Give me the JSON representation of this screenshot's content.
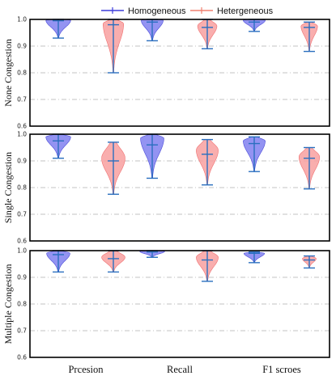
{
  "chart_data": {
    "type": "violin",
    "legend": {
      "placement": "top-center",
      "entries": [
        {
          "label": "Homogeneous",
          "color": "#3b3bdc"
        },
        {
          "label": "Hetergeneous",
          "color": "#f08070"
        }
      ]
    },
    "categories": [
      "Prcesion",
      "Recall",
      "F1 scroes"
    ],
    "ylim": [
      0.6,
      1.0
    ],
    "yticks": [
      "0.6",
      "0.7",
      "0.8",
      "0.9",
      "1.0"
    ],
    "grid": "horizontal dashed",
    "colors": {
      "homo_fill": "#8080f0",
      "homo_edge": "#4a4ad8",
      "hetero_fill": "#f8a0a0",
      "hetero_edge": "#f07070",
      "whisker": "#2a6fbf"
    },
    "panels": [
      {
        "ylabel": "None Congestion",
        "series": [
          {
            "name": "Homogeneous",
            "min": [
              0.93,
              0.92,
              0.955
            ],
            "mean": [
              0.995,
              0.99,
              0.99
            ],
            "max": [
              1.0,
              1.0,
              1.0
            ],
            "peak": [
              0.997,
              0.997,
              0.997
            ],
            "width": [
              0.9,
              0.8,
              0.8
            ]
          },
          {
            "name": "Hetergeneous",
            "min": [
              0.8,
              0.89,
              0.88
            ],
            "mean": [
              0.98,
              0.97,
              0.97
            ],
            "max": [
              1.0,
              1.0,
              0.99
            ],
            "peak": [
              0.985,
              0.975,
              0.975
            ],
            "width": [
              0.75,
              0.7,
              0.6
            ]
          }
        ]
      },
      {
        "ylabel": "Single Congestion",
        "series": [
          {
            "name": "Homogeneous",
            "min": [
              0.91,
              0.835,
              0.86
            ],
            "mean": [
              0.975,
              0.96,
              0.965
            ],
            "max": [
              1.0,
              1.0,
              0.99
            ],
            "peak": [
              0.99,
              0.985,
              0.975
            ],
            "width": [
              0.9,
              0.85,
              0.8
            ]
          },
          {
            "name": "Hetergeneous",
            "min": [
              0.775,
              0.81,
              0.795
            ],
            "mean": [
              0.9,
              0.925,
              0.91
            ],
            "max": [
              0.97,
              0.98,
              0.95
            ],
            "peak": [
              0.91,
              0.94,
              0.915
            ],
            "width": [
              0.85,
              0.8,
              0.75
            ]
          }
        ]
      },
      {
        "ylabel": "Multiple Congestion",
        "series": [
          {
            "name": "Homogeneous",
            "min": [
              0.92,
              0.975,
              0.955
            ],
            "mean": [
              0.985,
              0.995,
              0.99
            ],
            "max": [
              1.0,
              1.0,
              0.995
            ],
            "peak": [
              0.99,
              0.997,
              0.99
            ],
            "width": [
              0.85,
              0.9,
              0.75
            ]
          },
          {
            "name": "Hetergeneous",
            "min": [
              0.92,
              0.885,
              0.935
            ],
            "mean": [
              0.97,
              0.965,
              0.965
            ],
            "max": [
              1.0,
              1.0,
              0.98
            ],
            "peak": [
              0.975,
              0.975,
              0.97
            ],
            "width": [
              0.85,
              0.8,
              0.5
            ]
          }
        ]
      }
    ]
  }
}
